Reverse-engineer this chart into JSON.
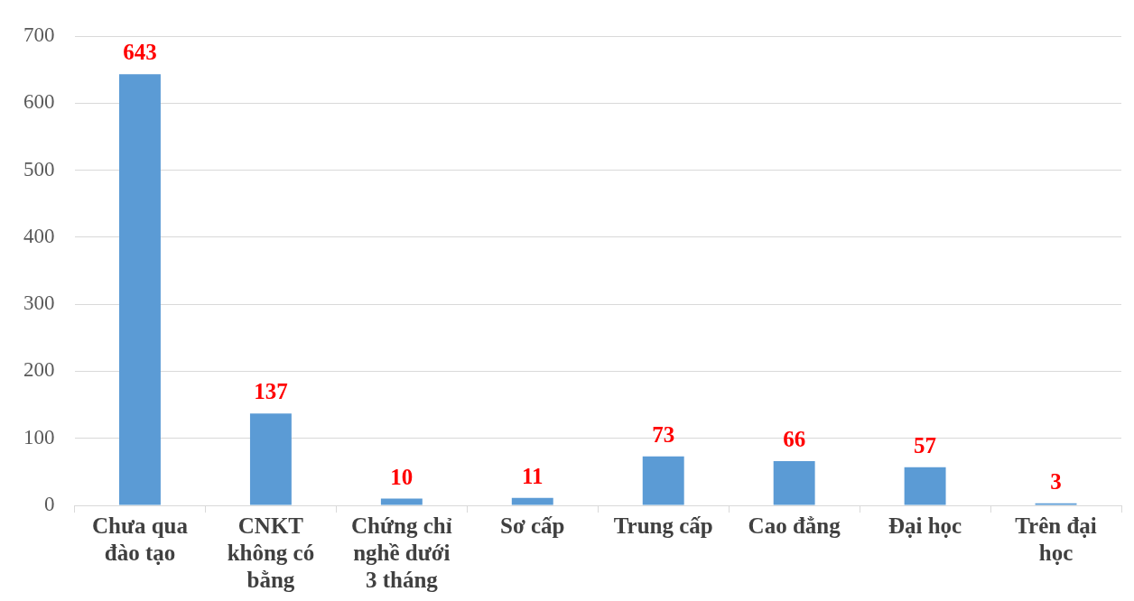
{
  "chart_data": {
    "type": "bar",
    "categories": [
      "Chưa qua đào tạo",
      "CNKT không có bằng",
      "Chứng chỉ nghề dưới 3 tháng",
      "Sơ cấp",
      "Trung cấp",
      "Cao đẳng",
      "Đại học",
      "Trên đại học"
    ],
    "values": [
      643,
      137,
      10,
      11,
      73,
      66,
      57,
      3
    ],
    "color": "#5b9bd5",
    "ylim": [
      0,
      700
    ],
    "yticks": [
      0,
      100,
      200,
      300,
      400,
      500,
      600,
      700
    ],
    "grid": "y",
    "data_labels": true,
    "legend": false
  }
}
